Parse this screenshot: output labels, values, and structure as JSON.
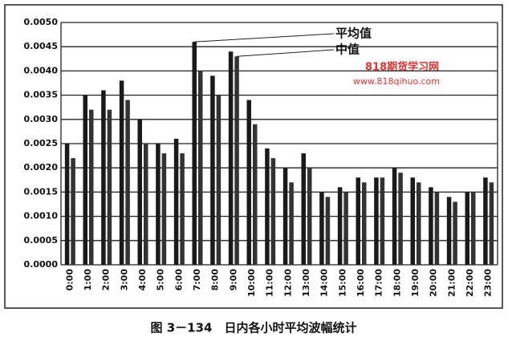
{
  "chart_data": {
    "type": "bar",
    "caption": "图 3－134　日内各小时平均波幅统计",
    "categories": [
      "0:00",
      "1:00",
      "2:00",
      "3:00",
      "4:00",
      "5:00",
      "6:00",
      "7:00",
      "8:00",
      "9:00",
      "10:00",
      "11:00",
      "12:00",
      "13:00",
      "14:00",
      "15:00",
      "16:00",
      "17:00",
      "18:00",
      "19:00",
      "20:00",
      "21:00",
      "22:00",
      "23:00"
    ],
    "series": [
      {
        "name": "平均值",
        "color": "#1a1a1a",
        "values": [
          0.0025,
          0.0035,
          0.0036,
          0.0038,
          0.003,
          0.0025,
          0.0026,
          0.0046,
          0.0039,
          0.0044,
          0.0034,
          0.0024,
          0.002,
          0.0023,
          0.0015,
          0.0016,
          0.0018,
          0.0018,
          0.002,
          0.0018,
          0.0016,
          0.0014,
          0.0015,
          0.0018
        ]
      },
      {
        "name": "中值",
        "color": "#333333",
        "values": [
          0.0022,
          0.0032,
          0.0032,
          0.0034,
          0.0025,
          0.0023,
          0.0023,
          0.004,
          0.0035,
          0.0043,
          0.0029,
          0.0022,
          0.0017,
          0.002,
          0.0014,
          0.0015,
          0.0017,
          0.0018,
          0.0019,
          0.0017,
          0.0015,
          0.0013,
          0.0015,
          0.0017
        ]
      }
    ],
    "ylim": [
      0,
      0.005
    ],
    "yticks": [
      {
        "value": 0,
        "label": "0.0000"
      },
      {
        "value": 0.0005,
        "label": "0.0005"
      },
      {
        "value": 0.001,
        "label": "0.0010"
      },
      {
        "value": 0.0015,
        "label": "0.0015"
      },
      {
        "value": 0.002,
        "label": "0.0020"
      },
      {
        "value": 0.0025,
        "label": "0.0025"
      },
      {
        "value": 0.003,
        "label": "0.0030"
      },
      {
        "value": 0.0035,
        "label": "0.0035"
      },
      {
        "value": 0.004,
        "label": "0.0040"
      },
      {
        "value": 0.0045,
        "label": "0.0045"
      },
      {
        "value": 0.005,
        "label": "0.0050"
      }
    ],
    "grid": true,
    "watermark": [
      "818期货学习网",
      "www.818qihuo.com"
    ]
  }
}
